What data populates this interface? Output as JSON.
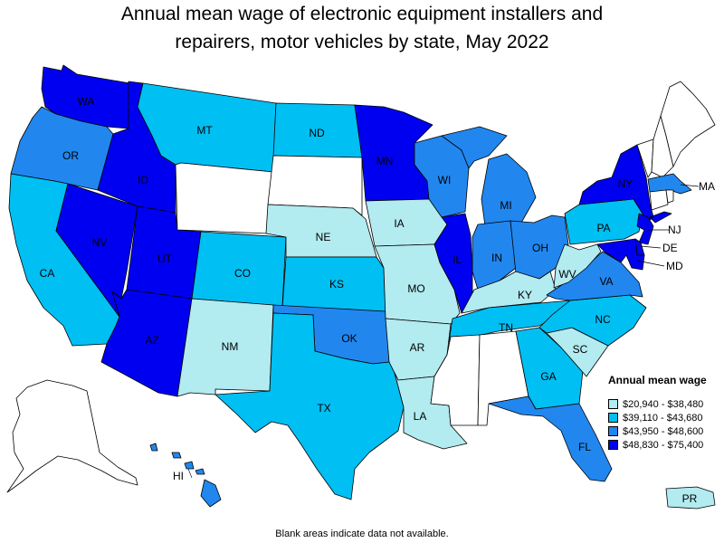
{
  "title_lines": [
    "Annual mean wage of electronic equipment installers and",
    "repairers, motor vehicles by state, May 2022"
  ],
  "colors": {
    "q1": "#b2ebf0",
    "q2": "#00bff3",
    "q3": "#2187ef",
    "q4": "#0000f0",
    "na": "#ffffff"
  },
  "legend": {
    "title": "Annual mean wage",
    "items": [
      {
        "label": "$20,940 - $38,480",
        "color_key": "q1"
      },
      {
        "label": "$39,110 - $43,680",
        "color_key": "q2"
      },
      {
        "label": "$43,950 - $48,600",
        "color_key": "q3"
      },
      {
        "label": "$48,830 - $75,400",
        "color_key": "q4"
      }
    ]
  },
  "states": {
    "WA": "q4",
    "OR": "q3",
    "CA": "q2",
    "ID": "q4",
    "NV": "q4",
    "UT": "q4",
    "AZ": "q4",
    "MT": "q2",
    "WY": "na",
    "CO": "q2",
    "NM": "q1",
    "ND": "q2",
    "SD": "na",
    "NE": "q1",
    "KS": "q2",
    "OK": "q3",
    "TX": "q2",
    "MN": "q4",
    "IA": "q1",
    "MO": "q1",
    "AR": "q1",
    "LA": "q1",
    "WI": "q3",
    "IL": "q4",
    "MI": "q3",
    "IN": "q3",
    "OH": "q3",
    "KY": "q1",
    "TN": "q2",
    "MS": "na",
    "AL": "na",
    "GA": "q2",
    "FL": "q3",
    "SC": "q1",
    "NC": "q2",
    "VA": "q3",
    "WV": "q1",
    "PA": "q2",
    "NY": "q4",
    "NJ": "q4",
    "DE": "q4",
    "MD": "q4",
    "MA": "q3",
    "CT": "na",
    "RI": "na",
    "VT": "na",
    "NH": "na",
    "ME": "na",
    "AK": "na",
    "HI": "q3",
    "PR": "q1"
  },
  "footnote": "Blank areas indicate data not available."
}
